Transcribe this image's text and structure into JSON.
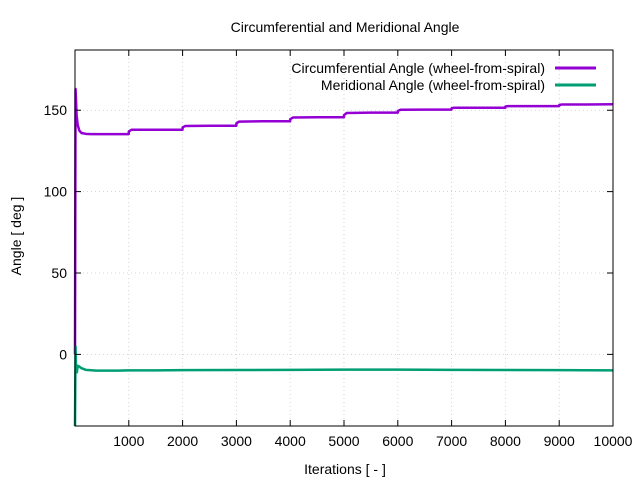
{
  "chart_data": {
    "type": "line",
    "title": "Circumferential and Meridional Angle",
    "xlabel": "Iterations [ - ]",
    "ylabel": "Angle [ deg ]",
    "xlim": [
      0,
      10000
    ],
    "ylim": [
      -44,
      187
    ],
    "xticks": [
      1000,
      2000,
      3000,
      4000,
      5000,
      6000,
      7000,
      8000,
      9000,
      10000
    ],
    "yticks": [
      0,
      50,
      100,
      150
    ],
    "grid": true,
    "legend_position": "top-right",
    "series": [
      {
        "name": "Circumferential Angle (wheel-from-spiral)",
        "color": "#9400d3",
        "x": [
          0,
          10,
          20,
          30,
          50,
          80,
          120,
          200,
          300,
          500,
          800,
          999,
          1000,
          1050,
          1500,
          1999,
          2000,
          2050,
          2500,
          2999,
          3000,
          3050,
          3500,
          3999,
          4000,
          4050,
          4500,
          4999,
          5000,
          5050,
          5500,
          5999,
          6000,
          6050,
          6500,
          6999,
          7000,
          7050,
          7500,
          7999,
          8000,
          8050,
          8500,
          8999,
          9000,
          9050,
          9500,
          10000
        ],
        "y": [
          0,
          163,
          155,
          147,
          141,
          137.5,
          136,
          135.5,
          135.3,
          135.3,
          135.3,
          135.3,
          137,
          138,
          138,
          138,
          139.5,
          140.3,
          140.5,
          140.5,
          142,
          143,
          143.2,
          143.2,
          144.5,
          145.5,
          145.7,
          145.7,
          147,
          148.3,
          148.5,
          148.5,
          149.5,
          150.3,
          150.4,
          150.4,
          151.2,
          151.5,
          151.5,
          151.5,
          152.3,
          152.5,
          152.5,
          152.5,
          153.2,
          153.5,
          153.5,
          153.7
        ]
      },
      {
        "name": "Meridional Angle (wheel-from-spiral)",
        "color": "#009e73",
        "x": [
          0,
          10,
          20,
          35,
          50,
          80,
          120,
          200,
          400,
          800,
          1000,
          1500,
          2000,
          3000,
          4000,
          5000,
          6000,
          7000,
          8000,
          9000,
          10000
        ],
        "y": [
          -44,
          5,
          -10,
          -11,
          -7,
          -7.5,
          -8.5,
          -9.5,
          -10,
          -10,
          -9.8,
          -9.8,
          -9.7,
          -9.6,
          -9.5,
          -9.4,
          -9.4,
          -9.5,
          -9.6,
          -9.7,
          -9.8
        ]
      }
    ]
  }
}
